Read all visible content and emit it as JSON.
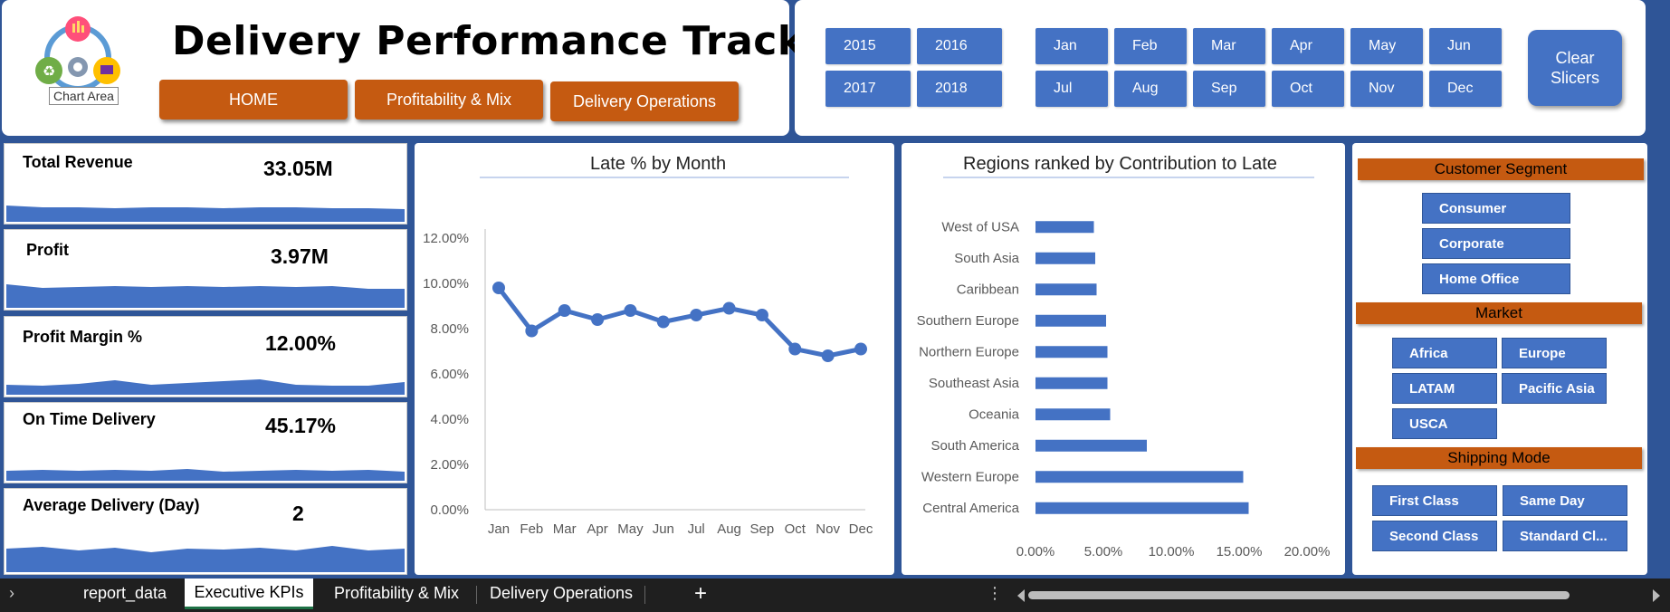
{
  "header": {
    "title": "Delivery Performance Tracker",
    "tooltip": "Chart Area",
    "nav": [
      "HOME",
      "Profitability & Mix",
      "Delivery Operations"
    ]
  },
  "slicers": {
    "years": [
      "2015",
      "2016",
      "2017",
      "2018"
    ],
    "months": [
      "Jan",
      "Feb",
      "Mar",
      "Apr",
      "May",
      "Jun",
      "Jul",
      "Aug",
      "Sep",
      "Oct",
      "Nov",
      "Dec"
    ],
    "clear_line1": "Clear",
    "clear_line2": "Slicers"
  },
  "kpis": [
    {
      "label": "Total Revenue",
      "value": "33.05M"
    },
    {
      "label": "Profit",
      "value": "3.97M"
    },
    {
      "label": "Profit Margin %",
      "value": "12.00%"
    },
    {
      "label": "On Time Delivery",
      "value": "45.17%"
    },
    {
      "label": "Average Delivery (Day)",
      "value": "2"
    }
  ],
  "chart_data": [
    {
      "type": "line",
      "title": "Late % by Month",
      "categories": [
        "Jan",
        "Feb",
        "Mar",
        "Apr",
        "May",
        "Jun",
        "Jul",
        "Aug",
        "Sep",
        "Oct",
        "Nov",
        "Dec"
      ],
      "values": [
        9.8,
        7.9,
        8.8,
        8.4,
        8.8,
        8.3,
        8.6,
        8.9,
        8.6,
        7.1,
        6.8,
        7.1
      ],
      "ylim": [
        0,
        12
      ],
      "yticks": [
        "0.00%",
        "2.00%",
        "4.00%",
        "6.00%",
        "8.00%",
        "10.00%",
        "12.00%"
      ],
      "color": "#4472c4"
    },
    {
      "type": "bar",
      "orientation": "horizontal",
      "title": "Regions ranked by Contribution to Late",
      "categories": [
        "West of USA",
        "South Asia",
        "Caribbean",
        "Southern Europe",
        "Northern Europe",
        "Southeast Asia",
        "Oceania",
        "South America",
        "Western Europe",
        "Central America"
      ],
      "values": [
        4.3,
        4.4,
        4.5,
        5.2,
        5.3,
        5.3,
        5.5,
        8.2,
        15.3,
        15.7
      ],
      "xlim": [
        0,
        20
      ],
      "xticks": [
        "0.00%",
        "5.00%",
        "10.00%",
        "15.00%",
        "20.00%"
      ],
      "color": "#4472c4"
    }
  ],
  "filters": {
    "segment_header": "Customer Segment",
    "segments": [
      "Consumer",
      "Corporate",
      "Home Office"
    ],
    "market_header": "Market",
    "markets": [
      "Africa",
      "Europe",
      "LATAM",
      "Pacific Asia",
      "USCA"
    ],
    "shipping_header": "Shipping Mode",
    "shipping": [
      "First Class",
      "Same Day",
      "Second Class",
      "Standard Cl..."
    ]
  },
  "tabs": {
    "items": [
      "report_data",
      "Executive KPIs",
      "Profitability & Mix",
      "Delivery Operations"
    ],
    "active": "Executive KPIs",
    "add": "+"
  }
}
